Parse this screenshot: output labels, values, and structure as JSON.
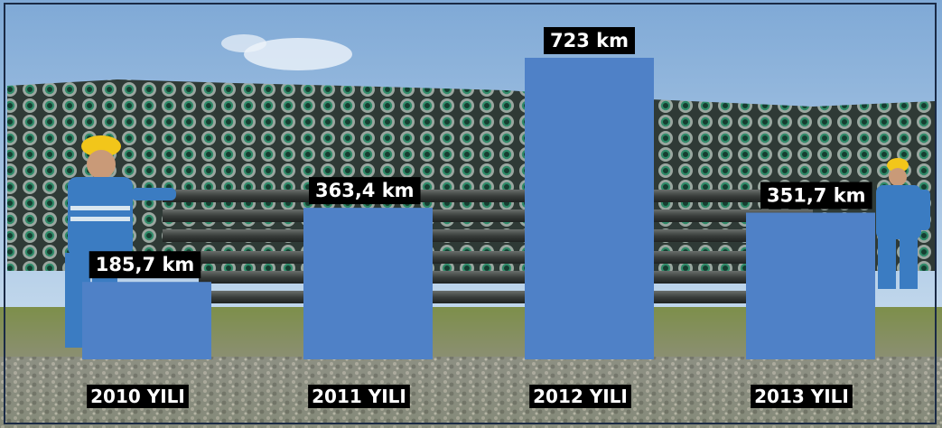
{
  "chart_data": {
    "type": "bar",
    "categories": [
      "2010 YILI",
      "2011 YILI",
      "2012 YILI",
      "2013 YILI"
    ],
    "values": [
      185.7,
      363.4,
      723,
      351.7
    ],
    "data_labels": [
      "185,7 km",
      "363,4 km",
      "723 km",
      "351,7 km"
    ],
    "unit": "km",
    "title": "",
    "xlabel": "",
    "ylabel": "",
    "ylim": [
      0,
      820
    ],
    "grid": false,
    "legend": "none",
    "bar_color": "#4f81c7",
    "label_background": "#000000",
    "label_color": "#ffffff"
  },
  "background": {
    "description_icon": "pipe-yard-photo",
    "sky_color": "#bcd6ee",
    "grass_color": "#6f8a3c",
    "pipe_color": "#3a4d45"
  }
}
